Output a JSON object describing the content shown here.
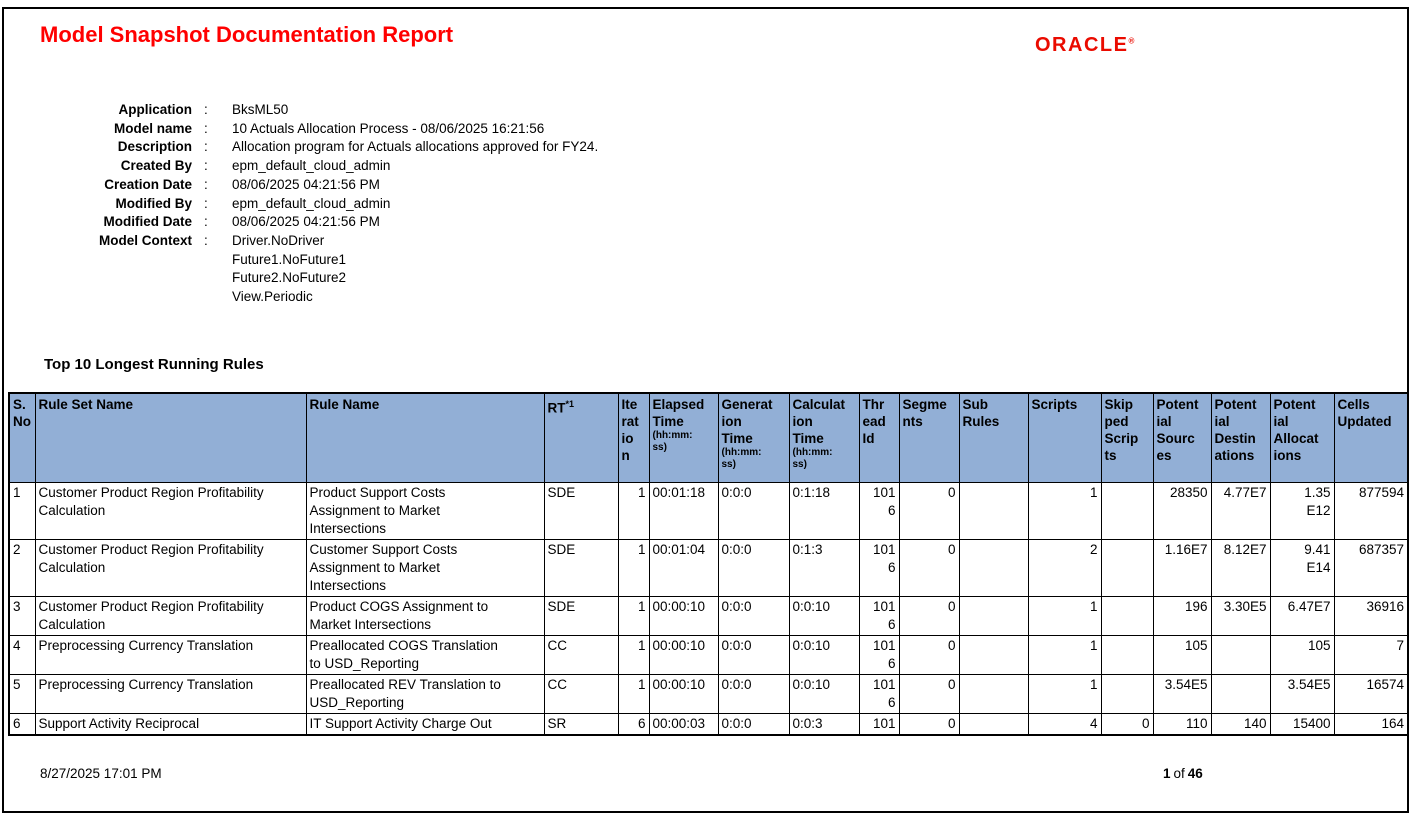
{
  "report": {
    "title": "Model Snapshot Documentation Report",
    "logo_text": "ORACLE",
    "logo_reg_mark": "®"
  },
  "metadata": {
    "colon": ":",
    "rows": [
      {
        "label": "Application",
        "value": "BksML50"
      },
      {
        "label": "Model name",
        "value": "10 Actuals Allocation Process - 08/06/2025 16:21:56"
      },
      {
        "label": "Description",
        "value": "Allocation program for Actuals allocations approved for FY24."
      },
      {
        "label": "Created By",
        "value": "epm_default_cloud_admin"
      },
      {
        "label": "Creation Date",
        "value": "08/06/2025 04:21:56 PM"
      },
      {
        "label": "Modified By",
        "value": "epm_default_cloud_admin"
      },
      {
        "label": "Modified Date",
        "value": "08/06/2025 04:21:56 PM"
      },
      {
        "label": "Model Context",
        "value": "Driver.NoDriver\nFuture1.NoFuture1\nFuture2.NoFuture2\nView.Periodic"
      }
    ]
  },
  "section": {
    "title": "Top 10 Longest Running Rules"
  },
  "rules_table": {
    "columns": [
      {
        "key": "s-no",
        "label": "S.\nNo"
      },
      {
        "key": "rule-set-name",
        "label": "Rule Set Name"
      },
      {
        "key": "rule-name",
        "label": "Rule Name"
      },
      {
        "key": "rt",
        "label": "RT",
        "sup": "*1"
      },
      {
        "key": "iteration",
        "label": "Ite\nrat\nio\nn"
      },
      {
        "key": "elapsed-time",
        "label": "Elapsed\nTime",
        "sub": "(hh:mm:\nss)"
      },
      {
        "key": "generation-time",
        "label": "Generat\nion\nTime",
        "sub": "(hh:mm:\nss)"
      },
      {
        "key": "calculation-time",
        "label": "Calculat\nion\nTime",
        "sub": "(hh:mm:\nss)"
      },
      {
        "key": "thread-id",
        "label": "Thr\nead\nId"
      },
      {
        "key": "segments",
        "label": "Segme\nnts"
      },
      {
        "key": "sub-rules",
        "label": "Sub\nRules"
      },
      {
        "key": "scripts",
        "label": "Scripts"
      },
      {
        "key": "skipped-scripts",
        "label": "Skip\nped\nScrip\nts"
      },
      {
        "key": "potential-sources",
        "label": "Potent\nial\nSourc\nes"
      },
      {
        "key": "potential-destinations",
        "label": "Potent\nial\nDestin\nations"
      },
      {
        "key": "potential-allocations",
        "label": "Potent\nial\nAllocat\nions"
      },
      {
        "key": "cells-updated",
        "label": "Cells\nUpdated"
      }
    ],
    "rows": [
      [
        "1",
        "Customer Product Region Profitability\nCalculation",
        "Product Support Costs\nAssignment to Market\nIntersections",
        "SDE",
        "1",
        "00:01:18",
        "0:0:0",
        "0:1:18",
        "101\n6",
        "0",
        "",
        "1",
        "",
        "28350",
        "4.77E7",
        "1.35\nE12",
        "877594"
      ],
      [
        "2",
        "Customer Product Region Profitability\nCalculation",
        "Customer Support Costs\nAssignment to Market\nIntersections",
        "SDE",
        "1",
        "00:01:04",
        "0:0:0",
        "0:1:3",
        "101\n6",
        "0",
        "",
        "2",
        "",
        "1.16E7",
        "8.12E7",
        "9.41\nE14",
        "687357"
      ],
      [
        "3",
        "Customer Product Region Profitability\nCalculation",
        "Product COGS Assignment to\nMarket Intersections",
        "SDE",
        "1",
        "00:00:10",
        "0:0:0",
        "0:0:10",
        "101\n6",
        "0",
        "",
        "1",
        "",
        "196",
        "3.30E5",
        "6.47E7",
        "36916"
      ],
      [
        "4",
        "Preprocessing Currency Translation",
        "Preallocated COGS Translation\nto USD_Reporting",
        "CC",
        "1",
        "00:00:10",
        "0:0:0",
        "0:0:10",
        "101\n6",
        "0",
        "",
        "1",
        "",
        "105",
        "",
        "105",
        "7"
      ],
      [
        "5",
        "Preprocessing Currency Translation",
        "Preallocated REV Translation to\nUSD_Reporting",
        "CC",
        "1",
        "00:00:10",
        "0:0:0",
        "0:0:10",
        "101\n6",
        "0",
        "",
        "1",
        "",
        "3.54E5",
        "",
        "3.54E5",
        "16574"
      ],
      [
        "6",
        "Support Activity Reciprocal",
        "IT Support Activity Charge Out",
        "SR",
        "6",
        "00:00:03",
        "0:0:0",
        "0:0:3",
        "101",
        "0",
        "",
        "4",
        "0",
        "110",
        "140",
        "15400",
        "164"
      ]
    ]
  },
  "footer": {
    "generated_at": "8/27/2025 17:01 PM",
    "page_number": "1",
    "of_label": "of",
    "total_pages": "46"
  },
  "colors": {
    "title_red": "#ff0000",
    "oracle_red": "#ea0b00",
    "header_blue": "#92afd6",
    "border_black": "#000000"
  }
}
